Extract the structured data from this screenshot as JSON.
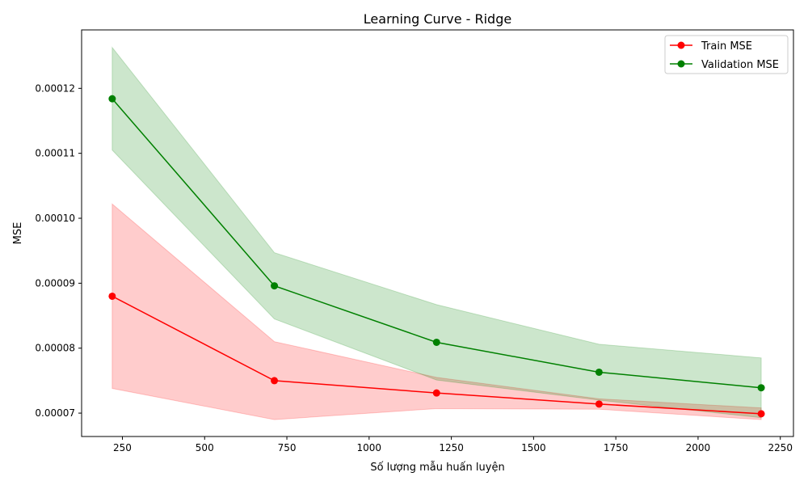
{
  "chart_data": {
    "type": "line",
    "title": "Learning Curve - Ridge",
    "xlabel": "Số lượng mẫu huấn luyện",
    "ylabel": "MSE",
    "xlim": [
      126,
      2290
    ],
    "ylim": [
      6.64e-05,
      0.000129
    ],
    "x_ticks": [
      250,
      500,
      750,
      1000,
      1250,
      1500,
      1750,
      2000,
      2250
    ],
    "x_tick_labels": [
      "250",
      "500",
      "750",
      "1000",
      "1250",
      "1500",
      "1750",
      "2000",
      "2250"
    ],
    "y_ticks": [
      7e-05,
      8e-05,
      9e-05,
      0.0001,
      0.00011,
      0.00012
    ],
    "y_tick_labels": [
      "0.00007",
      "0.00008",
      "0.00009",
      "0.00010",
      "0.00011",
      "0.00012"
    ],
    "grid": false,
    "legend_position": "top-right",
    "x": [
      219,
      712,
      1205,
      1699,
      2192
    ],
    "series": [
      {
        "name": "Train MSE",
        "color": "#ff0000",
        "band_color": "#ff0000",
        "values": [
          8.8e-05,
          7.5e-05,
          7.31e-05,
          7.14e-05,
          6.99e-05
        ],
        "lower": [
          7.38e-05,
          6.9e-05,
          7.07e-05,
          7.06e-05,
          6.9e-05
        ],
        "upper": [
          0.0001022,
          8.1e-05,
          7.55e-05,
          7.22e-05,
          7.08e-05
        ]
      },
      {
        "name": "Validation MSE",
        "color": "#008000",
        "band_color": "#008000",
        "values": [
          0.0001184,
          8.96e-05,
          8.09e-05,
          7.63e-05,
          7.39e-05
        ],
        "lower": [
          0.0001105,
          8.45e-05,
          7.51e-05,
          7.2e-05,
          6.93e-05
        ],
        "upper": [
          0.0001263,
          9.47e-05,
          8.67e-05,
          8.06e-05,
          7.85e-05
        ]
      }
    ]
  }
}
